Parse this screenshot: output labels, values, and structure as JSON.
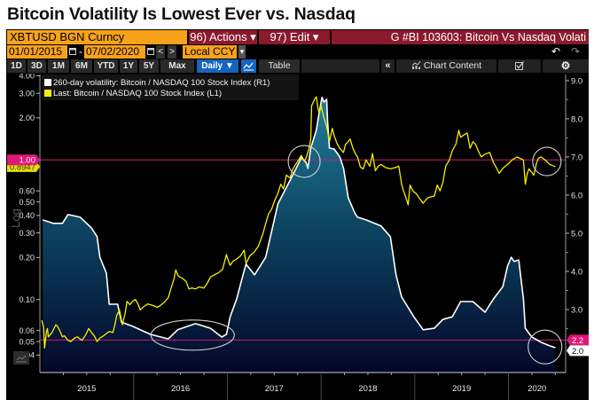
{
  "header": {
    "title": "Bitcoin Volatility Is Lowest Ever vs. Nasdaq"
  },
  "toolbar": {
    "security": "XBTUSD BGN Curncy",
    "actions": "96) Actions ▾",
    "edit": "97) Edit ▾",
    "chart_id": "G #BI 103603: Bitcoin Vs Nasdaq Volati",
    "start_date": "01/01/2015",
    "date_separator": "-",
    "end_date": "07/02/2020",
    "prev": "<",
    "next": ">",
    "currency": "Local CCY",
    "currency_dropdown": "▾",
    "undo": "↶",
    "redo": "↷",
    "periods": [
      "1D",
      "3D",
      "1M",
      "6M",
      "YTD",
      "1Y",
      "5Y",
      "Max"
    ],
    "frequency": "Daily ▼",
    "table": "Table",
    "collapse": "«",
    "chart_content": "Chart Content",
    "gear": "⚙"
  },
  "icons": {
    "calendar": "calendar-icon",
    "chart_type": "line-chart-icon",
    "chart_content": "chart-content-icon",
    "edit": "edit-checkbox-icon",
    "settings": "gear-icon",
    "undo": "undo-icon",
    "redo": "redo-icon",
    "scale_toggle": "line-chart-icon"
  },
  "legend": [
    {
      "label": "260-day volatility: Bitcoin / NASDAQ 100 Stock Index (R1)",
      "color": "#ffffff"
    },
    {
      "label": "Last: Bitcoin / NASDAQ 100 Stock Index (L1)",
      "color": "#f5f000"
    }
  ],
  "axis_labels": {
    "left_scale": "Log"
  },
  "colors": {
    "orange": "#f7a21b",
    "dark_red": "#8b1a2c",
    "blue": "#1565c0",
    "pink": "#e0177a",
    "yellow": "#f5f000",
    "white": "#ffffff"
  },
  "chart_data": {
    "type": "line",
    "title": "Bitcoin Volatility Is Lowest Ever vs. Nasdaq",
    "xlabel": "",
    "x_unit": "year (decimal)",
    "x_range": [
      2015.0,
      2020.61
    ],
    "x_ticks": [
      "2015",
      "2016",
      "2017",
      "2018",
      "2019",
      "2020"
    ],
    "y_left": {
      "label": "Log",
      "scale": "log",
      "range": [
        0.03,
        4.09
      ],
      "ticks": [
        "4.00",
        "3.00",
        "2.00",
        "1.00",
        "0.60",
        "0.50",
        "0.40",
        "0.30",
        "0.20",
        "0.10",
        "0.06",
        "0.05",
        "0.04"
      ]
    },
    "y_right": {
      "scale": "linear",
      "range": [
        1.35,
        9.16
      ],
      "ticks": [
        "9.0",
        "8.0",
        "7.0",
        "6.0",
        "5.0",
        "4.0",
        "3.0"
      ]
    },
    "grid": false,
    "legend_position": "top-left",
    "series": [
      {
        "name": "260-day volatility: Bitcoin / NASDAQ 100 Stock Index (R1)",
        "axis": "right",
        "style": "area",
        "color": "#ffffff",
        "last_value": "2.0",
        "points": [
          [
            2015.03,
            5.35
          ],
          [
            2015.14,
            5.26
          ],
          [
            2015.24,
            5.26
          ],
          [
            2015.3,
            5.49
          ],
          [
            2015.43,
            5.42
          ],
          [
            2015.55,
            5.14
          ],
          [
            2015.61,
            4.91
          ],
          [
            2015.64,
            4.37
          ],
          [
            2015.71,
            3.95
          ],
          [
            2015.74,
            3.14
          ],
          [
            2015.83,
            3.14
          ],
          [
            2015.87,
            2.67
          ],
          [
            2015.99,
            2.56
          ],
          [
            2016.18,
            2.35
          ],
          [
            2016.37,
            2.23
          ],
          [
            2016.47,
            2.47
          ],
          [
            2016.66,
            2.63
          ],
          [
            2016.82,
            2.51
          ],
          [
            2016.94,
            2.28
          ],
          [
            2016.99,
            2.35
          ],
          [
            2017.03,
            2.81
          ],
          [
            2017.1,
            3.28
          ],
          [
            2017.16,
            3.84
          ],
          [
            2017.2,
            4.19
          ],
          [
            2017.29,
            3.91
          ],
          [
            2017.35,
            4.14
          ],
          [
            2017.41,
            4.37
          ],
          [
            2017.54,
            5.77
          ],
          [
            2017.7,
            6.53
          ],
          [
            2017.79,
            6.98
          ],
          [
            2017.84,
            6.86
          ],
          [
            2017.86,
            6.7
          ],
          [
            2017.89,
            7.23
          ],
          [
            2017.95,
            7.7
          ],
          [
            2017.98,
            8.16
          ],
          [
            2018.01,
            8.56
          ],
          [
            2018.03,
            8.44
          ],
          [
            2018.06,
            8.51
          ],
          [
            2018.07,
            7.93
          ],
          [
            2018.09,
            7.23
          ],
          [
            2018.14,
            7.21
          ],
          [
            2018.2,
            7.0
          ],
          [
            2018.24,
            6.7
          ],
          [
            2018.29,
            5.93
          ],
          [
            2018.36,
            5.53
          ],
          [
            2018.39,
            5.42
          ],
          [
            2018.48,
            5.35
          ],
          [
            2018.64,
            5.19
          ],
          [
            2018.74,
            4.91
          ],
          [
            2018.8,
            3.91
          ],
          [
            2018.86,
            3.33
          ],
          [
            2018.99,
            2.81
          ],
          [
            2019.09,
            2.47
          ],
          [
            2019.21,
            2.51
          ],
          [
            2019.3,
            2.74
          ],
          [
            2019.4,
            2.81
          ],
          [
            2019.49,
            3.21
          ],
          [
            2019.62,
            3.21
          ],
          [
            2019.75,
            2.93
          ],
          [
            2019.84,
            3.28
          ],
          [
            2019.94,
            3.6
          ],
          [
            2019.99,
            4.14
          ],
          [
            2020.03,
            4.37
          ],
          [
            2020.06,
            4.26
          ],
          [
            2020.11,
            4.3
          ],
          [
            2020.16,
            3.28
          ],
          [
            2020.18,
            2.51
          ],
          [
            2020.25,
            2.28
          ],
          [
            2020.35,
            2.14
          ],
          [
            2020.44,
            2.05
          ],
          [
            2020.5,
            2.0
          ]
        ]
      },
      {
        "name": "Last: Bitcoin / NASDAQ 100 Stock Index (L1)",
        "axis": "left",
        "style": "line",
        "color": "#f5f000",
        "last_value": "0.8947",
        "points": [
          [
            2015.02,
            0.071
          ],
          [
            2015.04,
            0.063
          ],
          [
            2015.05,
            0.045
          ],
          [
            2015.07,
            0.059
          ],
          [
            2015.08,
            0.062
          ],
          [
            2015.09,
            0.054
          ],
          [
            2015.13,
            0.058
          ],
          [
            2015.17,
            0.066
          ],
          [
            2015.19,
            0.064
          ],
          [
            2015.22,
            0.058
          ],
          [
            2015.24,
            0.054
          ],
          [
            2015.26,
            0.055
          ],
          [
            2015.3,
            0.051
          ],
          [
            2015.33,
            0.05
          ],
          [
            2015.37,
            0.053
          ],
          [
            2015.4,
            0.054
          ],
          [
            2015.43,
            0.052
          ],
          [
            2015.45,
            0.051
          ],
          [
            2015.49,
            0.056
          ],
          [
            2015.52,
            0.062
          ],
          [
            2015.55,
            0.058
          ],
          [
            2015.58,
            0.055
          ],
          [
            2015.61,
            0.05
          ],
          [
            2015.64,
            0.053
          ],
          [
            2015.68,
            0.055
          ],
          [
            2015.71,
            0.057
          ],
          [
            2015.74,
            0.059
          ],
          [
            2015.78,
            0.058
          ],
          [
            2015.8,
            0.066
          ],
          [
            2015.82,
            0.077
          ],
          [
            2015.85,
            0.084
          ],
          [
            2015.88,
            0.066
          ],
          [
            2015.91,
            0.08
          ],
          [
            2015.93,
            0.097
          ],
          [
            2015.96,
            0.092
          ],
          [
            2015.99,
            0.097
          ],
          [
            2016.02,
            0.1
          ],
          [
            2016.05,
            0.092
          ],
          [
            2016.07,
            0.084
          ],
          [
            2016.1,
            0.088
          ],
          [
            2016.15,
            0.093
          ],
          [
            2016.2,
            0.091
          ],
          [
            2016.25,
            0.088
          ],
          [
            2016.28,
            0.09
          ],
          [
            2016.33,
            0.096
          ],
          [
            2016.37,
            0.103
          ],
          [
            2016.4,
            0.121
          ],
          [
            2016.43,
            0.14
          ],
          [
            2016.45,
            0.163
          ],
          [
            2016.47,
            0.15
          ],
          [
            2016.49,
            0.145
          ],
          [
            2016.52,
            0.142
          ],
          [
            2016.56,
            0.135
          ],
          [
            2016.59,
            0.119
          ],
          [
            2016.62,
            0.121
          ],
          [
            2016.66,
            0.119
          ],
          [
            2016.7,
            0.123
          ],
          [
            2016.75,
            0.121
          ],
          [
            2016.79,
            0.132
          ],
          [
            2016.82,
            0.145
          ],
          [
            2016.86,
            0.15
          ],
          [
            2016.91,
            0.156
          ],
          [
            2016.95,
            0.165
          ],
          [
            2016.99,
            0.21
          ],
          [
            2017.01,
            0.19
          ],
          [
            2017.03,
            0.176
          ],
          [
            2017.06,
            0.188
          ],
          [
            2017.1,
            0.195
          ],
          [
            2017.14,
            0.205
          ],
          [
            2017.18,
            0.226
          ],
          [
            2017.2,
            0.181
          ],
          [
            2017.24,
            0.205
          ],
          [
            2017.29,
            0.22
          ],
          [
            2017.33,
            0.24
          ],
          [
            2017.38,
            0.296
          ],
          [
            2017.41,
            0.35
          ],
          [
            2017.44,
            0.41
          ],
          [
            2017.47,
            0.44
          ],
          [
            2017.51,
            0.52
          ],
          [
            2017.54,
            0.577
          ],
          [
            2017.57,
            0.67
          ],
          [
            2017.6,
            0.62
          ],
          [
            2017.63,
            0.777
          ],
          [
            2017.67,
            0.743
          ],
          [
            2017.7,
            0.862
          ],
          [
            2017.73,
            0.93
          ],
          [
            2017.76,
            1.0
          ],
          [
            2017.79,
            1.077
          ],
          [
            2017.82,
            0.98
          ],
          [
            2017.84,
            1.03
          ],
          [
            2017.87,
            1.2
          ],
          [
            2017.89,
            1.41
          ],
          [
            2017.9,
            2.44
          ],
          [
            2017.93,
            2.71
          ],
          [
            2017.95,
            2.83
          ],
          [
            2017.97,
            2.3
          ],
          [
            2017.98,
            2.16
          ],
          [
            2018.0,
            2.44
          ],
          [
            2018.03,
            2.01
          ],
          [
            2018.06,
            1.73
          ],
          [
            2018.09,
            1.35
          ],
          [
            2018.12,
            1.68
          ],
          [
            2018.14,
            1.49
          ],
          [
            2018.17,
            1.31
          ],
          [
            2018.2,
            1.21
          ],
          [
            2018.24,
            1.13
          ],
          [
            2018.26,
            1.29
          ],
          [
            2018.29,
            1.35
          ],
          [
            2018.31,
            1.41
          ],
          [
            2018.34,
            1.21
          ],
          [
            2018.37,
            1.1
          ],
          [
            2018.39,
            1.05
          ],
          [
            2018.42,
            0.888
          ],
          [
            2018.45,
            0.862
          ],
          [
            2018.48,
            1.0
          ],
          [
            2018.52,
            0.9
          ],
          [
            2018.55,
            1.11
          ],
          [
            2018.58,
            0.837
          ],
          [
            2018.61,
            0.9
          ],
          [
            2018.64,
            0.928
          ],
          [
            2018.69,
            0.88
          ],
          [
            2018.74,
            0.862
          ],
          [
            2018.79,
            0.88
          ],
          [
            2018.83,
            0.901
          ],
          [
            2018.86,
            0.67
          ],
          [
            2018.88,
            0.6
          ],
          [
            2018.9,
            0.552
          ],
          [
            2018.93,
            0.476
          ],
          [
            2018.95,
            0.66
          ],
          [
            2018.98,
            0.6
          ],
          [
            2019.02,
            0.569
          ],
          [
            2019.05,
            0.53
          ],
          [
            2019.09,
            0.49
          ],
          [
            2019.12,
            0.52
          ],
          [
            2019.14,
            0.536
          ],
          [
            2019.18,
            0.545
          ],
          [
            2019.21,
            0.552
          ],
          [
            2019.24,
            0.66
          ],
          [
            2019.27,
            0.6
          ],
          [
            2019.3,
            0.69
          ],
          [
            2019.33,
            0.901
          ],
          [
            2019.37,
            1.0
          ],
          [
            2019.4,
            1.16
          ],
          [
            2019.44,
            1.3
          ],
          [
            2019.47,
            1.63
          ],
          [
            2019.49,
            1.45
          ],
          [
            2019.53,
            1.52
          ],
          [
            2019.56,
            1.56
          ],
          [
            2019.59,
            1.21
          ],
          [
            2019.62,
            1.35
          ],
          [
            2019.65,
            1.29
          ],
          [
            2019.68,
            1.15
          ],
          [
            2019.71,
            1.05
          ],
          [
            2019.75,
            1.1
          ],
          [
            2019.8,
            1.13
          ],
          [
            2019.84,
            0.956
          ],
          [
            2019.87,
            0.88
          ],
          [
            2019.9,
            0.8
          ],
          [
            2019.94,
            0.87
          ],
          [
            2019.99,
            0.928
          ],
          [
            2020.04,
            1.0
          ],
          [
            2020.09,
            1.05
          ],
          [
            2020.13,
            1.02
          ],
          [
            2020.16,
            1.0
          ],
          [
            2020.18,
            0.67
          ],
          [
            2020.2,
            0.8
          ],
          [
            2020.22,
            0.862
          ],
          [
            2020.27,
            0.777
          ],
          [
            2020.3,
            0.95
          ],
          [
            2020.32,
            1.03
          ],
          [
            2020.35,
            1.05
          ],
          [
            2020.39,
            1.0
          ],
          [
            2020.42,
            0.96
          ],
          [
            2020.44,
            0.928
          ],
          [
            2020.47,
            0.91
          ],
          [
            2020.5,
            0.895
          ]
        ]
      }
    ],
    "reference_lines": [
      {
        "axis": "left",
        "value": 1.0,
        "color": "#c81e6e"
      },
      {
        "axis": "right",
        "value": 2.2,
        "color": "#c81e6e"
      }
    ],
    "tags": [
      {
        "axis": "left",
        "value": 0.8947,
        "text": "0.8947",
        "bg": "#e8e000",
        "fg": "#333333"
      },
      {
        "axis": "left",
        "value": 1.0,
        "text": "1.00",
        "bg": "#e0177a",
        "fg": "#ffffff"
      },
      {
        "axis": "right",
        "value": 2.2,
        "text": "2.2",
        "bg": "#e0177a",
        "fg": "#ffffff"
      },
      {
        "axis": "right",
        "value": 2.0,
        "text": "2.0",
        "bg": "#ffffff",
        "fg": "#000000"
      }
    ],
    "annotations": [
      {
        "shape": "circle",
        "x": 2017.82,
        "axis": "left",
        "y": 0.975
      },
      {
        "shape": "ellipse",
        "x": 2016.63,
        "axis": "right",
        "y": 2.33
      },
      {
        "shape": "circle",
        "x": 2020.41,
        "axis": "left",
        "y": 0.975
      },
      {
        "shape": "circle",
        "x": 2020.39,
        "axis": "right",
        "y": 2.02
      }
    ]
  }
}
